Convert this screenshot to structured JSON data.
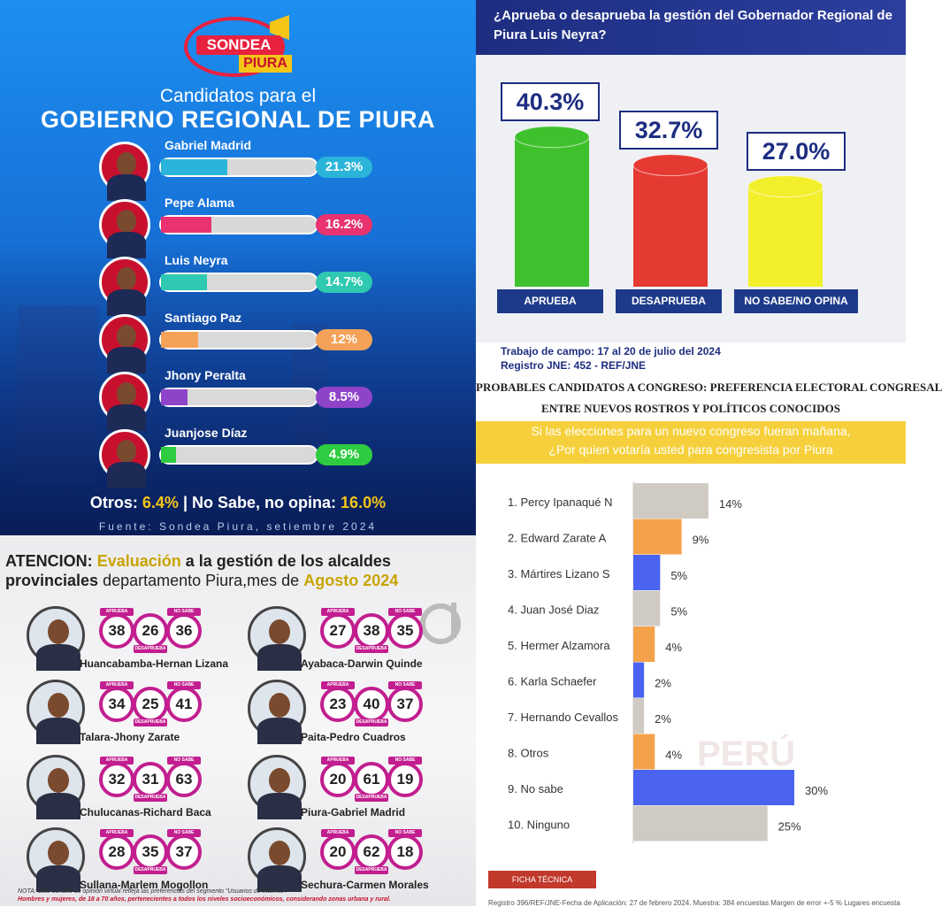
{
  "panel1": {
    "logo_top": "SONDEA",
    "logo_bottom": "PIURA",
    "title_line1": "Candidatos para el",
    "title_line2": "GOBIERNO REGIONAL DE PIURA",
    "others_label": "Otros:",
    "others_value": "6.4%",
    "separator": "|",
    "nosabe_label": "No Sabe, no opina:",
    "nosabe_value": "16.0%",
    "source": "Fuente: Sondea Piura, setiembre 2024"
  },
  "panel2": {
    "question": "¿Aprueba o desaprueba la gestión del Gobernador Regional de Piura Luis Neyra?",
    "fieldwork": "Trabajo de campo: 17 al 20 de julio del 2024",
    "registry": "Registro JNE: 452 - REF/JNE"
  },
  "panel3": {
    "title_prefix": "ATENCION:",
    "title_highlight1": "Evaluación",
    "title_mid1": "a la",
    "title_highlight2": "gestión de los alcaldes",
    "title_line2_a": "provinciales",
    "title_line2_b": "departamento Piura,mes de",
    "title_line2_c": "Agosto 2024",
    "label_aprueba": "APRUEBA",
    "label_desaprueba": "DESAPRUEBA",
    "label_nosabe": "NO SABE",
    "note1": "NOTA: Este sondeo de opinión virtual refleja las preferencias del segmento \"Usuarios de Internet\".",
    "note2": "Hombres y mujeres, de 18 a 70 años, pertenecientes a todos los niveles socioeconómicos, considerando zonas urbana y rural.",
    "colors": {
      "ring": "#c21e8f",
      "highlight": "#f5c518"
    }
  },
  "panel4": {
    "heading_line1": "PROBABLES CANDIDATOS A CONGRESO: PREFERENCIA ELECTORAL CONGRESAL",
    "heading_line2": "ENTRE NUEVOS ROSTROS Y POLÍTICOS CONOCIDOS",
    "band_line1": "Si las elecciones para un nuevo congreso fueran mañana,",
    "band_line2": "¿Por quien votaría usted para congresista por Piura",
    "watermark": "PERÚ",
    "ficha": "FICHA TÉCNICA",
    "registry": "Registro 396/REF/JNE-Fecha de Aplicación: 27 de febrero 2024. Muestra: 384 encuestas Margen de error +-5 % Lugares encuesta"
  },
  "chart_data": [
    {
      "type": "bar",
      "orientation": "horizontal",
      "categories": [
        "Gabriel Madrid",
        "Pepe Alama",
        "Luis Neyra",
        "Santiago Paz",
        "Jhony Peralta",
        "Juanjose Díaz"
      ],
      "values": [
        21.3,
        16.2,
        14.7,
        12,
        8.5,
        4.9
      ],
      "labels": [
        "21.3%",
        "16.2%",
        "14.7%",
        "12%",
        "8.5%",
        "4.9%"
      ],
      "colors": [
        "#2bb4d9",
        "#e8336f",
        "#2ec9b0",
        "#f4a259",
        "#8e44c9",
        "#2ecc40"
      ],
      "xlim": [
        0,
        50
      ]
    },
    {
      "type": "bar",
      "categories": [
        "APRUEBA",
        "DESAPRUEBA",
        "NO SABE/NO OPINA"
      ],
      "values": [
        40.3,
        32.7,
        27.0
      ],
      "labels": [
        "40.3%",
        "32.7%",
        "27.0%"
      ],
      "colors": [
        "#3fc12e",
        "#e53a32",
        "#f2ef2c"
      ],
      "ylim": [
        0,
        50
      ]
    },
    {
      "type": "table",
      "columns": [
        "APRUEBA",
        "DESAPRUEBA",
        "NO SABE"
      ],
      "rows": [
        {
          "province": "Huancabamba",
          "mayor": "Hernan Lizana",
          "values": [
            38,
            26,
            36
          ]
        },
        {
          "province": "Talara",
          "mayor": "Jhony Zarate",
          "values": [
            34,
            25,
            41
          ]
        },
        {
          "province": "Chulucanas",
          "mayor": "Richard Baca",
          "values": [
            32,
            31,
            63
          ]
        },
        {
          "province": "Sullana",
          "mayor": "Marlem Mogollon",
          "values": [
            28,
            35,
            37
          ]
        },
        {
          "province": "Ayabaca",
          "mayor": "Darwin Quinde",
          "values": [
            27,
            38,
            35
          ]
        },
        {
          "province": "Paita",
          "mayor": "Pedro Cuadros",
          "values": [
            23,
            40,
            37
          ]
        },
        {
          "province": "Piura",
          "mayor": "Gabriel Madrid",
          "values": [
            20,
            61,
            19
          ]
        },
        {
          "province": "Sechura",
          "mayor": "Carmen Morales",
          "values": [
            20,
            62,
            18
          ]
        }
      ]
    },
    {
      "type": "bar",
      "orientation": "horizontal",
      "categories": [
        "1. Percy Ipanaqué N",
        "2. Edward Zarate A",
        "3. Mártires Lizano S",
        "4. Juan José Diaz",
        "5. Hermer Alzamora",
        "6. Karla Schaefer",
        "7. Hernando Cevallos",
        "8. Otros",
        "9. No sabe",
        "10. Ninguno"
      ],
      "values": [
        14,
        9,
        5,
        5,
        4,
        2,
        2,
        4,
        30,
        25
      ],
      "labels": [
        "14%",
        "9%",
        "5%",
        "5%",
        "4%",
        "2%",
        "2%",
        "4%",
        "30%",
        "25%"
      ],
      "colors": [
        "#cfcbc3",
        "#f4a24a",
        "#4a63f0",
        "#cfcbc3",
        "#f4a24a",
        "#4a63f0",
        "#cfcbc3",
        "#f4a24a",
        "#4a63f0",
        "#cfcbc3"
      ],
      "xlim": [
        0,
        30
      ]
    }
  ]
}
